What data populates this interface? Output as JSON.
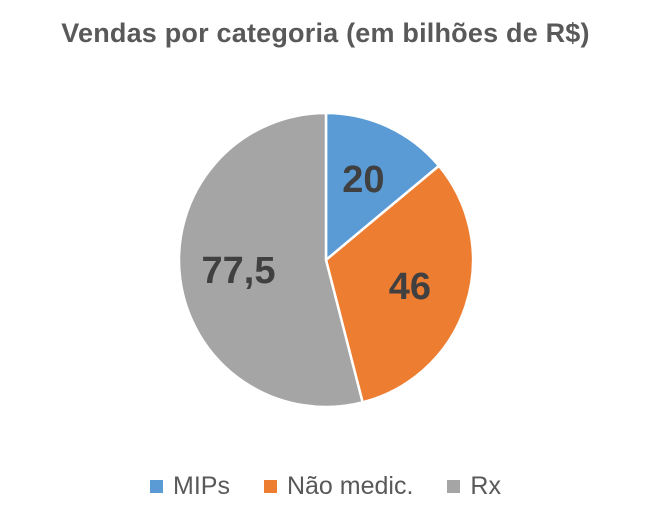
{
  "chart_data": {
    "type": "pie",
    "title": "Vendas por categoria (em bilhões de R$)",
    "categories": [
      "MIPs",
      "Não medic.",
      "Rx"
    ],
    "values": [
      20,
      46,
      77.5
    ],
    "value_labels": [
      "20",
      "46",
      "77,5"
    ],
    "colors": [
      "#5b9bd5",
      "#ed7d31",
      "#a5a5a5"
    ],
    "start_angle_deg": 0,
    "direction": "clockwise",
    "legend_position": "bottom"
  }
}
